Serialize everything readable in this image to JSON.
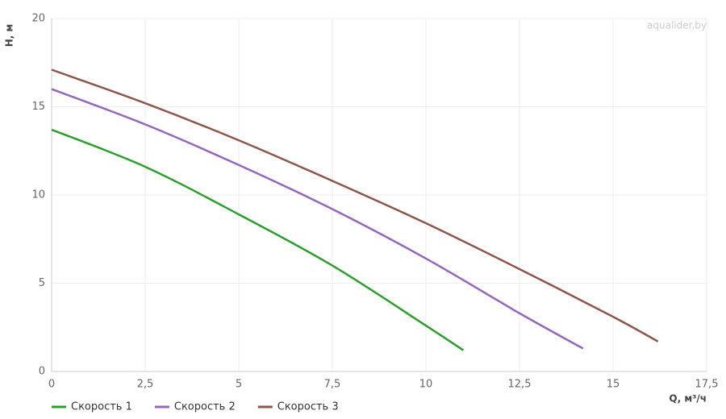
{
  "chart_data": {
    "type": "line",
    "watermark": "aqualider.by",
    "x_label": "Q, м³/ч",
    "y_label": "H, м",
    "xlim": [
      0,
      17.5
    ],
    "xticks": [
      0,
      {
        "value": 2.5,
        "label": "2,5"
      },
      5,
      {
        "value": 7.5,
        "label": "7,5"
      },
      10,
      {
        "value": 12.5,
        "label": "12,5"
      },
      15,
      {
        "value": 17.5,
        "label": "17,5"
      }
    ],
    "ylim": [
      0,
      20
    ],
    "yticks": [
      0,
      5,
      10,
      15,
      20
    ],
    "grid": true,
    "legend": "bottom-left",
    "series": [
      {
        "name": "Скорость 1",
        "color": "#2ca02c",
        "x": [
          0,
          2.5,
          5,
          7.5,
          10,
          11
        ],
        "values": [
          13.7,
          11.6,
          8.9,
          6.0,
          2.6,
          1.2
        ]
      },
      {
        "name": "Скорость 2",
        "color": "#9467bd",
        "x": [
          0,
          2.5,
          5,
          7.5,
          10,
          12.5,
          14.2
        ],
        "values": [
          16.0,
          14.0,
          11.7,
          9.2,
          6.4,
          3.3,
          1.3
        ]
      },
      {
        "name": "Скорость 3",
        "color": "#8c564b",
        "x": [
          0,
          2.5,
          5,
          7.5,
          10,
          12.5,
          15,
          16.2
        ],
        "values": [
          17.1,
          15.2,
          13.1,
          10.8,
          8.4,
          5.8,
          3.1,
          1.7
        ]
      }
    ]
  }
}
